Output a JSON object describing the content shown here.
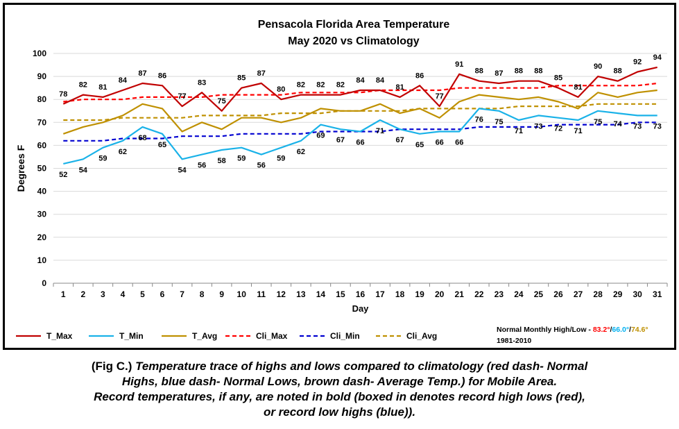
{
  "chart_data": {
    "type": "line",
    "title": "Pensacola Florida Area Temperature",
    "subtitle": "May 2020 vs Climatology",
    "xlabel": "Day",
    "ylabel": "Degrees F",
    "ylim": [
      0,
      100
    ],
    "yticks": [
      0,
      10,
      20,
      30,
      40,
      50,
      60,
      70,
      80,
      90,
      100
    ],
    "grid": true,
    "legend_position": "bottom",
    "x": [
      1,
      2,
      3,
      4,
      5,
      6,
      7,
      8,
      9,
      10,
      11,
      12,
      13,
      14,
      15,
      16,
      17,
      18,
      19,
      20,
      21,
      22,
      23,
      24,
      25,
      26,
      27,
      28,
      29,
      30,
      31
    ],
    "series": [
      {
        "name": "T_Max",
        "color": "#c00000",
        "style": "solid",
        "labels": true,
        "label_position": "above",
        "values": [
          78,
          82,
          81,
          84,
          87,
          86,
          77,
          83,
          75,
          85,
          87,
          80,
          82,
          82,
          82,
          84,
          84,
          81,
          86,
          77,
          91,
          88,
          87,
          88,
          88,
          85,
          81,
          90,
          88,
          92,
          94
        ]
      },
      {
        "name": "T_Min",
        "color": "#1ab2e8",
        "style": "solid",
        "labels": true,
        "label_position": "below",
        "values": [
          52,
          54,
          59,
          62,
          68,
          65,
          54,
          56,
          58,
          59,
          56,
          59,
          62,
          69,
          67,
          66,
          71,
          67,
          65,
          66,
          66,
          76,
          75,
          71,
          73,
          72,
          71,
          75,
          74,
          73,
          73
        ]
      },
      {
        "name": "T_Avg",
        "color": "#bf9000",
        "style": "solid",
        "labels": false,
        "values": [
          65,
          68,
          70,
          73,
          78,
          76,
          66,
          70,
          67,
          72,
          72,
          70,
          72,
          76,
          75,
          75,
          78,
          74,
          76,
          72,
          79,
          82,
          81,
          80,
          81,
          79,
          76,
          83,
          81,
          83,
          84
        ]
      },
      {
        "name": "Cli_Max",
        "color": "#ff0000",
        "style": "dashed",
        "labels": false,
        "values": [
          79,
          80,
          80,
          80,
          81,
          81,
          81,
          81,
          82,
          82,
          82,
          82,
          83,
          83,
          83,
          83,
          84,
          84,
          84,
          84,
          85,
          85,
          85,
          85,
          85,
          86,
          86,
          86,
          86,
          86,
          87
        ]
      },
      {
        "name": "Cli_Min",
        "color": "#0000d0",
        "style": "dashed",
        "labels": false,
        "values": [
          62,
          62,
          62,
          63,
          63,
          63,
          64,
          64,
          64,
          65,
          65,
          65,
          65,
          66,
          66,
          66,
          66,
          67,
          67,
          67,
          67,
          68,
          68,
          68,
          68,
          69,
          69,
          69,
          69,
          70,
          70
        ]
      },
      {
        "name": "Cli_Avg",
        "color": "#bf9000",
        "style": "dashed",
        "labels": false,
        "values": [
          71,
          71,
          71,
          72,
          72,
          72,
          72,
          73,
          73,
          73,
          73,
          74,
          74,
          74,
          75,
          75,
          75,
          75,
          76,
          76,
          76,
          76,
          76,
          77,
          77,
          77,
          77,
          78,
          78,
          78,
          78
        ]
      }
    ],
    "annotation": {
      "prefix": "Normal Monthly High/Low - ",
      "high": "83.2°",
      "high_color": "#ff0000",
      "sep1": "/",
      "low": "66.0°",
      "low_color": "#00b0f0",
      "sep2": "/",
      "avg": "74.6°",
      "avg_color": "#bf9000",
      "period": "1981-2010"
    }
  },
  "caption": {
    "prefix": "(Fig C.) ",
    "line1": "Temperature trace of highs and lows compared to climatology (red dash- Normal",
    "line2": "Highs, blue dash- Normal Lows, brown dash- Average Temp.) for Mobile Area.",
    "line3": "Record temperatures, if any, are noted in bold (boxed in denotes record high lows (red),",
    "line4": "or record low highs (blue))."
  }
}
